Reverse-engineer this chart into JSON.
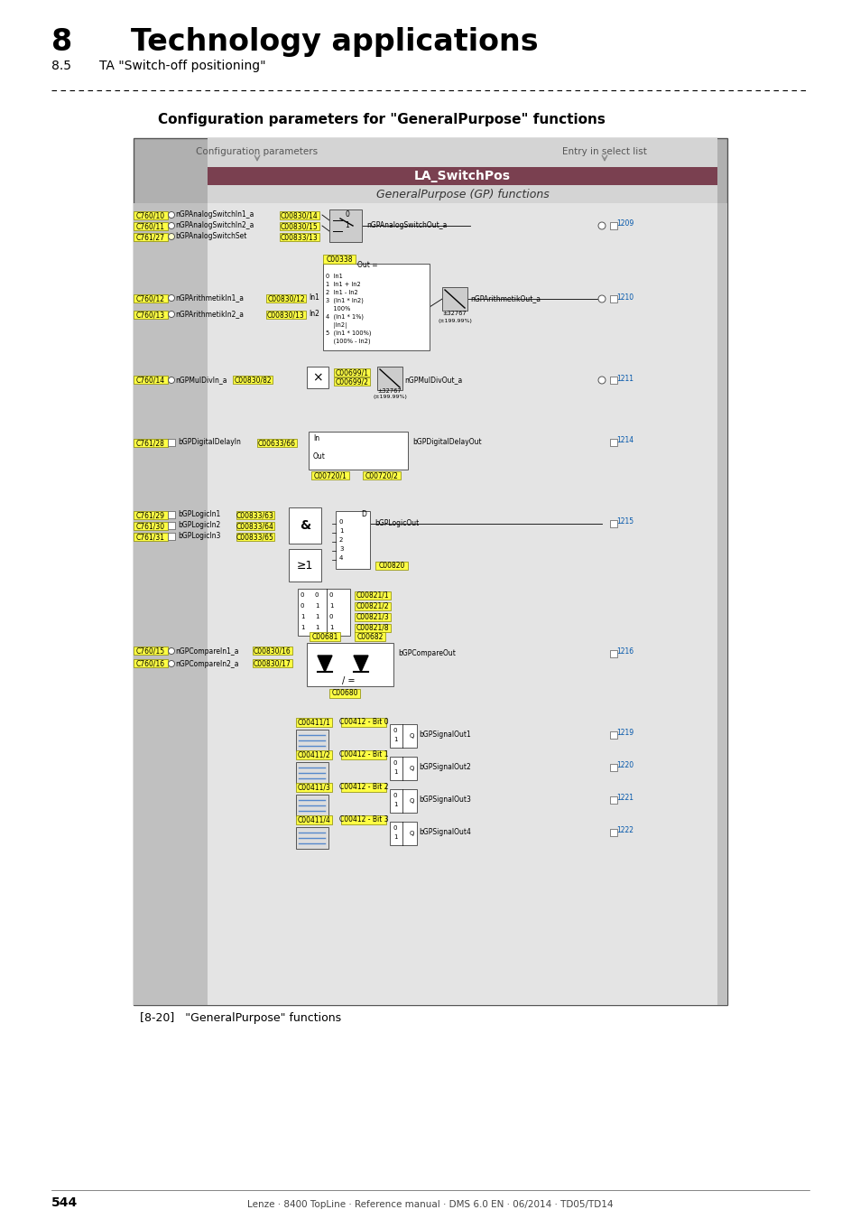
{
  "title_number": "8",
  "title_text": "Technology applications",
  "subtitle_number": "8.5",
  "subtitle_text": "TA \"Switch-off positioning\"",
  "section_title": "Configuration parameters for \"GeneralPurpose\" functions",
  "page_number": "544",
  "footer_text": "Lenze · 8400 TopLine · Reference manual · DMS 6.0 EN · 06/2014 · TD05/TD14",
  "caption": "[8-20]   \"GeneralPurpose\" functions",
  "diagram_title": "LA_SwitchPos",
  "diagram_subtitle": "GeneralPurpose (GP) functions",
  "header_col1": "Configuration parameters",
  "header_col2": "Entry in select list",
  "bg_color": "#ffffff",
  "diagram_outer_bg": "#c8c8c8",
  "diagram_inner_bg": "#d8d8d8",
  "header_bg": "#7a4050",
  "yellow_fill": "#ffff44",
  "yellow_edge": "#888800"
}
